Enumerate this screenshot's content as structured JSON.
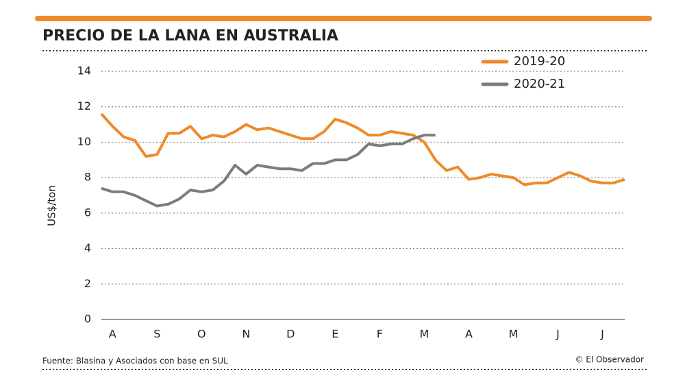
{
  "chart_data": {
    "type": "line",
    "title": "PRECIO DE LA LANA EN AUSTRALIA",
    "y_label": "US$/ton",
    "source": "Fuente: Blasina y Asociados con base en SUL",
    "credit": "© El Observador",
    "categories": [
      null,
      "A",
      null,
      null,
      null,
      "S",
      null,
      null,
      null,
      "O",
      null,
      null,
      null,
      "N",
      null,
      null,
      null,
      "D",
      null,
      null,
      null,
      "E",
      null,
      null,
      null,
      "F",
      null,
      null,
      null,
      "M",
      null,
      null,
      null,
      "A",
      null,
      null,
      null,
      "M",
      null,
      null,
      null,
      "J",
      null,
      null,
      null,
      "J",
      null,
      null
    ],
    "series": [
      {
        "name": "2019-20",
        "color": "#ee8a2a",
        "values": [
          11.6,
          10.9,
          10.3,
          10.1,
          9.2,
          9.3,
          10.5,
          10.5,
          10.9,
          10.2,
          10.4,
          10.3,
          10.6,
          11.0,
          10.7,
          10.8,
          10.6,
          10.4,
          10.2,
          10.2,
          10.6,
          11.3,
          11.1,
          10.8,
          10.4,
          10.4,
          10.6,
          10.5,
          10.4,
          10.0,
          9.0,
          8.4,
          8.6,
          7.9,
          8.0,
          8.2,
          8.1,
          8.0,
          7.6,
          7.7,
          7.7,
          8.0,
          8.3,
          8.1,
          7.8,
          7.7,
          7.7,
          7.9
        ]
      },
      {
        "name": "2020-21",
        "color": "#7f7b7b",
        "values": [
          7.4,
          7.2,
          7.2,
          7.0,
          6.7,
          6.4,
          6.5,
          6.8,
          7.3,
          7.2,
          7.3,
          7.8,
          8.7,
          8.2,
          8.7,
          8.6,
          8.5,
          8.5,
          8.4,
          8.8,
          8.8,
          9.0,
          9.0,
          9.3,
          9.9,
          9.8,
          9.9,
          9.9,
          10.2,
          10.4,
          10.4,
          null,
          null,
          null,
          null,
          null,
          null,
          null,
          null,
          null,
          null,
          null,
          null,
          null,
          null,
          null,
          null,
          null
        ]
      }
    ],
    "ylim": [
      0,
      14
    ],
    "yticks": [
      0,
      2,
      4,
      6,
      8,
      10,
      12,
      14
    ],
    "grid": true,
    "legend": "top-right"
  }
}
